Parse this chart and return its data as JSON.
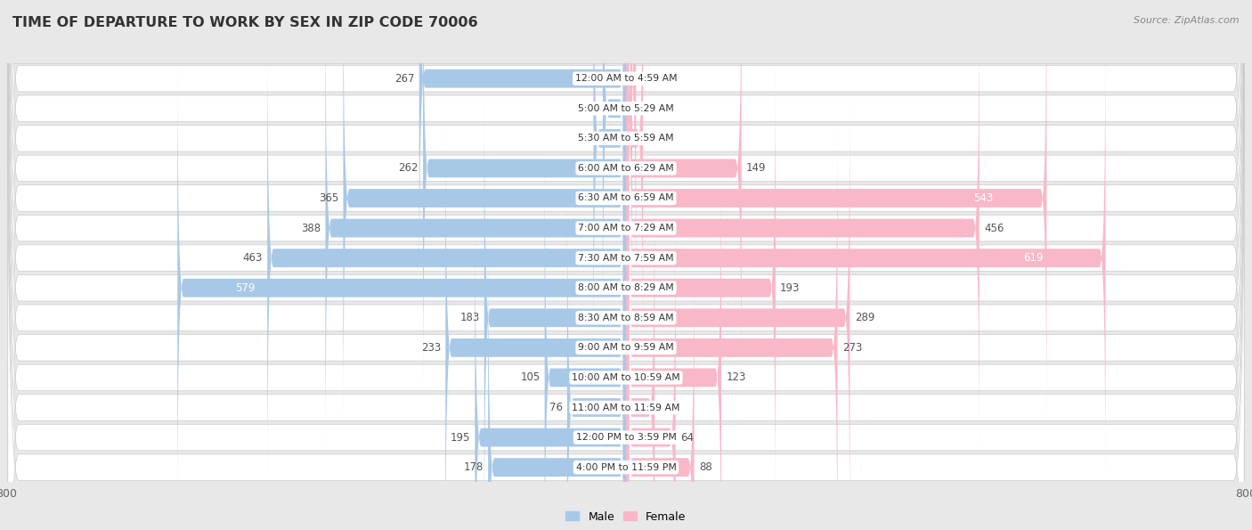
{
  "title": "TIME OF DEPARTURE TO WORK BY SEX IN ZIP CODE 70006",
  "source": "Source: ZipAtlas.com",
  "categories": [
    "12:00 AM to 4:59 AM",
    "5:00 AM to 5:29 AM",
    "5:30 AM to 5:59 AM",
    "6:00 AM to 6:29 AM",
    "6:30 AM to 6:59 AM",
    "7:00 AM to 7:29 AM",
    "7:30 AM to 7:59 AM",
    "8:00 AM to 8:29 AM",
    "8:30 AM to 8:59 AM",
    "9:00 AM to 9:59 AM",
    "10:00 AM to 10:59 AM",
    "11:00 AM to 11:59 AM",
    "12:00 PM to 3:59 PM",
    "4:00 PM to 11:59 PM"
  ],
  "male": [
    267,
    30,
    42,
    262,
    365,
    388,
    463,
    579,
    183,
    233,
    105,
    76,
    195,
    178
  ],
  "female": [
    13,
    8,
    22,
    149,
    543,
    456,
    619,
    193,
    289,
    273,
    123,
    37,
    64,
    88
  ],
  "male_color_light": "#a8c8e8",
  "male_color_dark": "#6aaad4",
  "female_color_light": "#f8b8c8",
  "female_color_dark": "#f06090",
  "male_inner_label_color": "#ffffff",
  "female_inner_label_color": "#ffffff",
  "label_color": "#555555",
  "bg_color": "#e8e8e8",
  "row_bg_color": "#ffffff",
  "axis_max": 800,
  "legend_male": "Male",
  "legend_female": "Female",
  "title_color": "#333333",
  "source_color": "#888888",
  "inner_label_threshold": 500
}
